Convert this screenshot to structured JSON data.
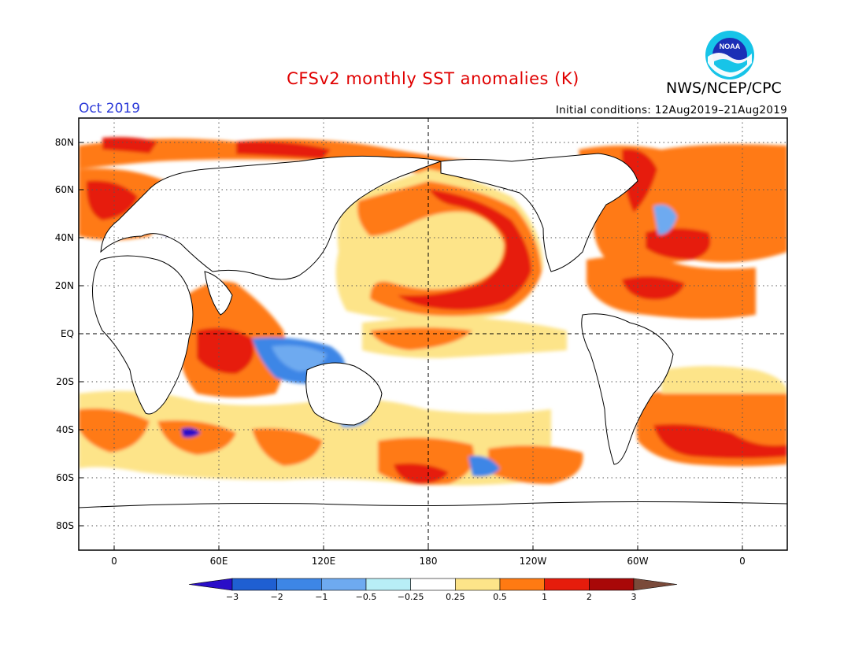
{
  "header": {
    "title": "CFSv2 monthly SST anomalies (K)",
    "month": "Oct 2019",
    "initial_conditions": "Initial conditions: 12Aug2019–21Aug2019",
    "agency": "NWS/NCEP/CPC",
    "logo_text": "NOAA"
  },
  "map": {
    "lat_labels": [
      "80N",
      "60N",
      "40N",
      "20N",
      "EQ",
      "20S",
      "40S",
      "60S",
      "80S"
    ],
    "lon_labels": [
      "0",
      "60E",
      "120E",
      "180",
      "120W",
      "60W",
      "0"
    ],
    "land_color": "#ffffff"
  },
  "colorbar": {
    "tick_labels": [
      "−3",
      "−2",
      "−1",
      "−0.5",
      "−0.25",
      "0.25",
      "0.5",
      "1",
      "2",
      "3"
    ],
    "colors": [
      "#2a0ec8",
      "#1f5fd2",
      "#3d86e6",
      "#6eaaf0",
      "#b8eef6",
      "#ffffff",
      "#fde489",
      "#ff7a12",
      "#e61c0c",
      "#a80808",
      "#7a4a3a"
    ]
  }
}
